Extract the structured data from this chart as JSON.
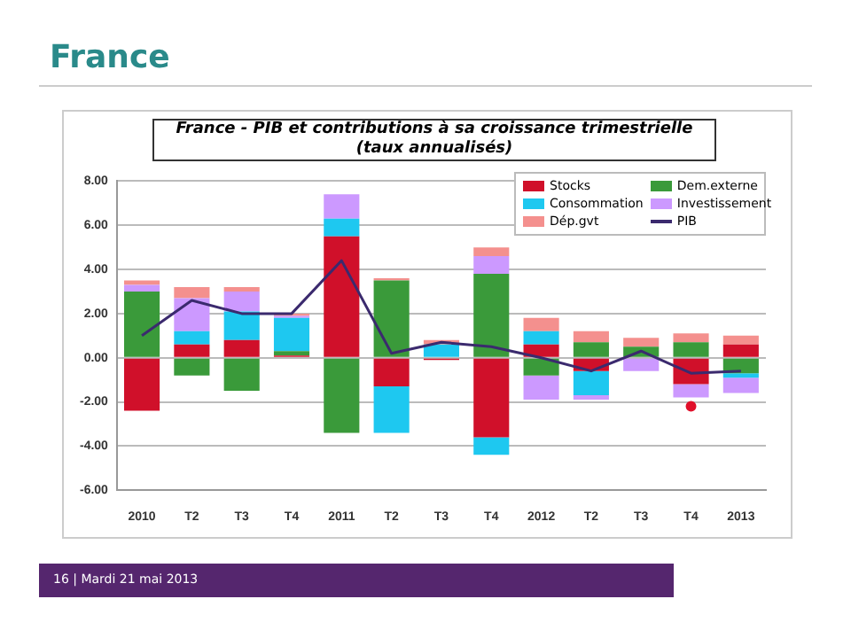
{
  "chart_data": {
    "type": "bar",
    "title": "France - PIB et contributions à sa croissance trimestrielle (taux annualisés)",
    "annotations": [
      "France",
      "16 | Mardi 21 mai 2013"
    ],
    "categories": [
      "2010",
      "T2",
      "T3",
      "T4",
      "2011",
      "T2",
      "T3",
      "T4",
      "2012",
      "T2",
      "T3",
      "T4",
      "2013"
    ],
    "stacked": true,
    "series": [
      {
        "name": "Stocks",
        "color": "#d0102a",
        "values": [
          -2.4,
          0.6,
          0.8,
          0.1,
          5.5,
          -1.3,
          -0.1,
          -3.6,
          0.6,
          -0.6,
          0,
          -1.2,
          0.6
        ]
      },
      {
        "name": "Dem.externe",
        "color": "#3a9a3a",
        "values": [
          3.0,
          -0.8,
          -1.5,
          0.2,
          -3.4,
          3.5,
          0,
          3.8,
          -0.8,
          0.7,
          0.5,
          0.7,
          -0.7
        ]
      },
      {
        "name": "Consommation",
        "color": "#1ec8f0",
        "values": [
          0,
          0.6,
          1.3,
          1.5,
          0.8,
          -2.1,
          0.6,
          -0.8,
          0.6,
          -1.1,
          0,
          0,
          -0.2
        ]
      },
      {
        "name": "Investissement",
        "color": "#cc99ff",
        "values": [
          0.3,
          1.5,
          0.9,
          0.1,
          1.1,
          0,
          0,
          0.8,
          -1.1,
          -0.2,
          -0.6,
          -0.6,
          -0.7
        ]
      },
      {
        "name": "Dép.gvt",
        "color": "#f4908e",
        "values": [
          0.2,
          0.5,
          0.2,
          0.1,
          0,
          0.1,
          0.2,
          0.4,
          0.6,
          0.5,
          0.4,
          0.4,
          0.4
        ]
      },
      {
        "name": "PIB",
        "type": "line",
        "color": "#3b2a6e",
        "marker": "none",
        "values": [
          1.0,
          2.6,
          2.0,
          2.0,
          4.4,
          0.2,
          0.7,
          0.5,
          0.0,
          -0.6,
          0.3,
          -0.7,
          -0.6
        ]
      },
      {
        "type": "scatter",
        "color": "#e0102a",
        "marker": "circle",
        "values": [
          null,
          null,
          null,
          null,
          null,
          null,
          null,
          null,
          null,
          null,
          null,
          -2.2,
          null
        ]
      }
    ],
    "ylim": [
      -6,
      8
    ],
    "yticks": [
      {
        "value": -6,
        "label": "-6.00"
      },
      {
        "value": -4,
        "label": "-4.00"
      },
      {
        "value": -2,
        "label": "-2.00"
      },
      {
        "value": 0,
        "label": "0.00"
      },
      {
        "value": 2,
        "label": "2.00"
      },
      {
        "value": 4,
        "label": "4.00"
      },
      {
        "value": 6,
        "label": "6.00"
      },
      {
        "value": 8,
        "label": "8.00"
      }
    ],
    "grid": "y",
    "legend": "top right"
  }
}
